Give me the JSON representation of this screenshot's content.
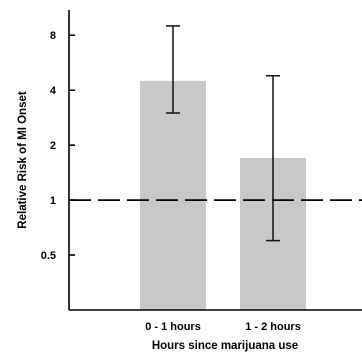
{
  "chart_data": {
    "type": "bar",
    "scale": "log",
    "categories": [
      "0 - 1 hours",
      "1 - 2 hours"
    ],
    "values": [
      4.5,
      1.7
    ],
    "error_low": [
      3.0,
      0.6
    ],
    "error_high": [
      9.0,
      4.8
    ],
    "xlabel": "Hours since marijuana use",
    "ylabel": "Relative Risk of MI Onset",
    "yticks": [
      0.5,
      1,
      2,
      4,
      8
    ],
    "ytick_labels": [
      "0.5",
      "1",
      "2",
      "4",
      "8"
    ],
    "ylim": [
      0.25,
      11
    ],
    "reference_line": 1,
    "bar_color": "#c8c8c8"
  }
}
